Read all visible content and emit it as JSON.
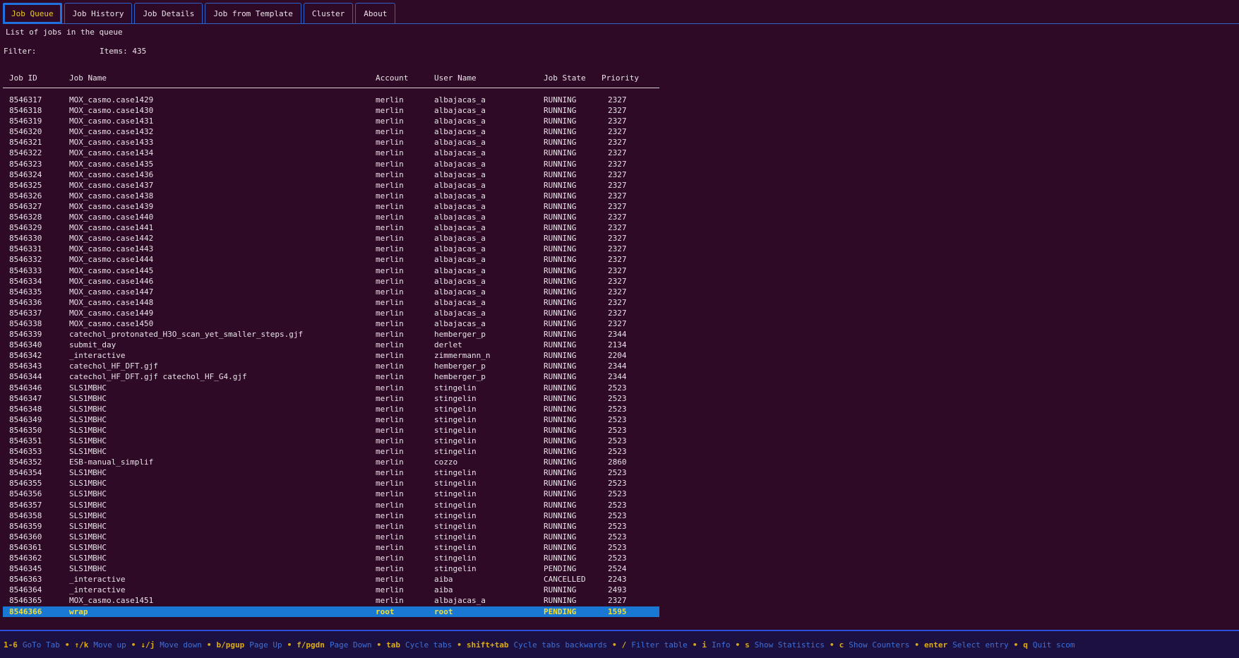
{
  "tabs": [
    {
      "label": "Job Queue",
      "active": true
    },
    {
      "label": "Job History",
      "active": false
    },
    {
      "label": "Job Details",
      "active": false
    },
    {
      "label": "Job from Template",
      "active": false
    },
    {
      "label": "Cluster",
      "active": false
    },
    {
      "label": "About",
      "active": false
    }
  ],
  "subtitle": "List of jobs in the queue",
  "filter": {
    "label": "Filter:",
    "value": "",
    "items_label": "Items: 435"
  },
  "table": {
    "columns": [
      "Job ID",
      "Job Name",
      "Account",
      "User Name",
      "Job State",
      "Priority"
    ],
    "selected_index": 48,
    "rows": [
      [
        "8546317",
        "MOX_casmo.case1429",
        "merlin",
        "albajacas_a",
        "RUNNING",
        "2327"
      ],
      [
        "8546318",
        "MOX_casmo.case1430",
        "merlin",
        "albajacas_a",
        "RUNNING",
        "2327"
      ],
      [
        "8546319",
        "MOX_casmo.case1431",
        "merlin",
        "albajacas_a",
        "RUNNING",
        "2327"
      ],
      [
        "8546320",
        "MOX_casmo.case1432",
        "merlin",
        "albajacas_a",
        "RUNNING",
        "2327"
      ],
      [
        "8546321",
        "MOX_casmo.case1433",
        "merlin",
        "albajacas_a",
        "RUNNING",
        "2327"
      ],
      [
        "8546322",
        "MOX_casmo.case1434",
        "merlin",
        "albajacas_a",
        "RUNNING",
        "2327"
      ],
      [
        "8546323",
        "MOX_casmo.case1435",
        "merlin",
        "albajacas_a",
        "RUNNING",
        "2327"
      ],
      [
        "8546324",
        "MOX_casmo.case1436",
        "merlin",
        "albajacas_a",
        "RUNNING",
        "2327"
      ],
      [
        "8546325",
        "MOX_casmo.case1437",
        "merlin",
        "albajacas_a",
        "RUNNING",
        "2327"
      ],
      [
        "8546326",
        "MOX_casmo.case1438",
        "merlin",
        "albajacas_a",
        "RUNNING",
        "2327"
      ],
      [
        "8546327",
        "MOX_casmo.case1439",
        "merlin",
        "albajacas_a",
        "RUNNING",
        "2327"
      ],
      [
        "8546328",
        "MOX_casmo.case1440",
        "merlin",
        "albajacas_a",
        "RUNNING",
        "2327"
      ],
      [
        "8546329",
        "MOX_casmo.case1441",
        "merlin",
        "albajacas_a",
        "RUNNING",
        "2327"
      ],
      [
        "8546330",
        "MOX_casmo.case1442",
        "merlin",
        "albajacas_a",
        "RUNNING",
        "2327"
      ],
      [
        "8546331",
        "MOX_casmo.case1443",
        "merlin",
        "albajacas_a",
        "RUNNING",
        "2327"
      ],
      [
        "8546332",
        "MOX_casmo.case1444",
        "merlin",
        "albajacas_a",
        "RUNNING",
        "2327"
      ],
      [
        "8546333",
        "MOX_casmo.case1445",
        "merlin",
        "albajacas_a",
        "RUNNING",
        "2327"
      ],
      [
        "8546334",
        "MOX_casmo.case1446",
        "merlin",
        "albajacas_a",
        "RUNNING",
        "2327"
      ],
      [
        "8546335",
        "MOX_casmo.case1447",
        "merlin",
        "albajacas_a",
        "RUNNING",
        "2327"
      ],
      [
        "8546336",
        "MOX_casmo.case1448",
        "merlin",
        "albajacas_a",
        "RUNNING",
        "2327"
      ],
      [
        "8546337",
        "MOX_casmo.case1449",
        "merlin",
        "albajacas_a",
        "RUNNING",
        "2327"
      ],
      [
        "8546338",
        "MOX_casmo.case1450",
        "merlin",
        "albajacas_a",
        "RUNNING",
        "2327"
      ],
      [
        "8546339",
        "catechol_protonated_H3O_scan_yet_smaller_steps.gjf",
        "merlin",
        "hemberger_p",
        "RUNNING",
        "2344"
      ],
      [
        "8546340",
        "submit_day",
        "merlin",
        "derlet",
        "RUNNING",
        "2134"
      ],
      [
        "8546342",
        "_interactive",
        "merlin",
        "zimmermann_n",
        "RUNNING",
        "2204"
      ],
      [
        "8546343",
        "catechol_HF_DFT.gjf",
        "merlin",
        "hemberger_p",
        "RUNNING",
        "2344"
      ],
      [
        "8546344",
        "catechol_HF_DFT.gjf catechol_HF_G4.gjf",
        "merlin",
        "hemberger_p",
        "RUNNING",
        "2344"
      ],
      [
        "8546346",
        "SLS1MBHC",
        "merlin",
        "stingelin",
        "RUNNING",
        "2523"
      ],
      [
        "8546347",
        "SLS1MBHC",
        "merlin",
        "stingelin",
        "RUNNING",
        "2523"
      ],
      [
        "8546348",
        "SLS1MBHC",
        "merlin",
        "stingelin",
        "RUNNING",
        "2523"
      ],
      [
        "8546349",
        "SLS1MBHC",
        "merlin",
        "stingelin",
        "RUNNING",
        "2523"
      ],
      [
        "8546350",
        "SLS1MBHC",
        "merlin",
        "stingelin",
        "RUNNING",
        "2523"
      ],
      [
        "8546351",
        "SLS1MBHC",
        "merlin",
        "stingelin",
        "RUNNING",
        "2523"
      ],
      [
        "8546353",
        "SLS1MBHC",
        "merlin",
        "stingelin",
        "RUNNING",
        "2523"
      ],
      [
        "8546352",
        "ESB-manual_simplif",
        "merlin",
        "cozzo",
        "RUNNING",
        "2860"
      ],
      [
        "8546354",
        "SLS1MBHC",
        "merlin",
        "stingelin",
        "RUNNING",
        "2523"
      ],
      [
        "8546355",
        "SLS1MBHC",
        "merlin",
        "stingelin",
        "RUNNING",
        "2523"
      ],
      [
        "8546356",
        "SLS1MBHC",
        "merlin",
        "stingelin",
        "RUNNING",
        "2523"
      ],
      [
        "8546357",
        "SLS1MBHC",
        "merlin",
        "stingelin",
        "RUNNING",
        "2523"
      ],
      [
        "8546358",
        "SLS1MBHC",
        "merlin",
        "stingelin",
        "RUNNING",
        "2523"
      ],
      [
        "8546359",
        "SLS1MBHC",
        "merlin",
        "stingelin",
        "RUNNING",
        "2523"
      ],
      [
        "8546360",
        "SLS1MBHC",
        "merlin",
        "stingelin",
        "RUNNING",
        "2523"
      ],
      [
        "8546361",
        "SLS1MBHC",
        "merlin",
        "stingelin",
        "RUNNING",
        "2523"
      ],
      [
        "8546362",
        "SLS1MBHC",
        "merlin",
        "stingelin",
        "RUNNING",
        "2523"
      ],
      [
        "8546345",
        "SLS1MBHC",
        "merlin",
        "stingelin",
        "PENDING",
        "2524"
      ],
      [
        "8546363",
        "_interactive",
        "merlin",
        "aiba",
        "CANCELLED",
        "2243"
      ],
      [
        "8546364",
        "_interactive",
        "merlin",
        "aiba",
        "RUNNING",
        "2493"
      ],
      [
        "8546365",
        "MOX_casmo.case1451",
        "merlin",
        "albajacas_a",
        "RUNNING",
        "2327"
      ],
      [
        "8546366",
        "wrap",
        "root",
        "root",
        "PENDING",
        "1595"
      ]
    ]
  },
  "statusbar": {
    "separator": "•",
    "bindings": [
      {
        "key": "1-6",
        "desc": "GoTo Tab"
      },
      {
        "key": "↑/k",
        "desc": "Move up"
      },
      {
        "key": "↓/j",
        "desc": "Move down"
      },
      {
        "key": "b/pgup",
        "desc": "Page Up"
      },
      {
        "key": "f/pgdn",
        "desc": "Page Down"
      },
      {
        "key": "tab",
        "desc": "Cycle tabs"
      },
      {
        "key": "shift+tab",
        "desc": "Cycle tabs backwards"
      },
      {
        "key": "/",
        "desc": "Filter table"
      },
      {
        "key": "i",
        "desc": "Info"
      },
      {
        "key": "s",
        "desc": "Show Statistics"
      },
      {
        "key": "c",
        "desc": "Show Counters"
      },
      {
        "key": "enter",
        "desc": "Select entry"
      },
      {
        "key": "q",
        "desc": "Quit scom"
      }
    ]
  },
  "colors": {
    "background": "#2f0a26",
    "tab_active_border": "#1f72e0",
    "tab_inactive_border": "#2f62c8",
    "tab_active_text": "#e8c91f",
    "text": "#e8e2e8",
    "selection_background": "#1878d4",
    "selection_text": "#f0e03a",
    "statusbar_background": "#1b1040",
    "statusbar_key": "#ddab0f",
    "statusbar_desc": "#3f6fd7",
    "statusbar_rule": "#2c50dc"
  }
}
